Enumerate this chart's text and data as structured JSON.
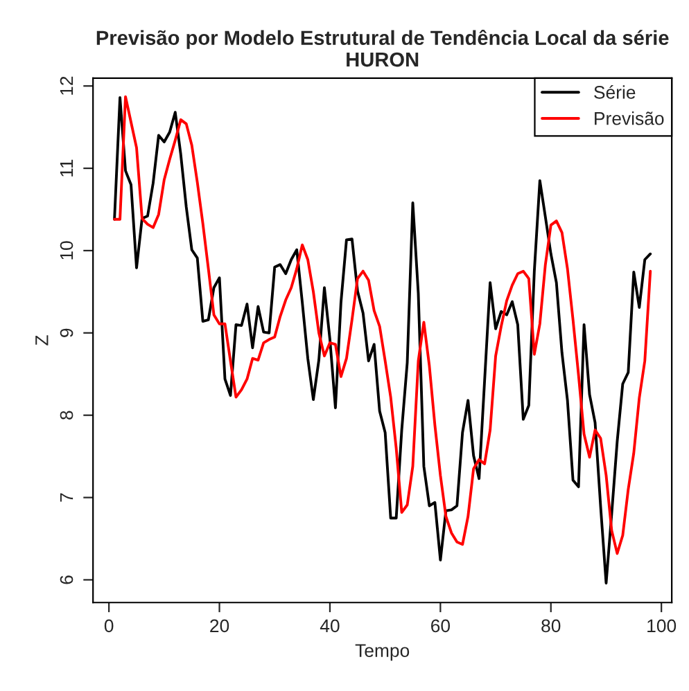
{
  "chart_data": {
    "type": "line",
    "title": "Previsão por Modelo Estrutural de Tendência Local da série\nHURON",
    "xlabel": "Tempo",
    "ylabel": "Z",
    "x": [
      1,
      2,
      3,
      4,
      5,
      6,
      7,
      8,
      9,
      10,
      11,
      12,
      13,
      14,
      15,
      16,
      17,
      18,
      19,
      20,
      21,
      22,
      23,
      24,
      25,
      26,
      27,
      28,
      29,
      30,
      31,
      32,
      33,
      34,
      35,
      36,
      37,
      38,
      39,
      40,
      41,
      42,
      43,
      44,
      45,
      46,
      47,
      48,
      49,
      50,
      51,
      52,
      53,
      54,
      55,
      56,
      57,
      58,
      59,
      60,
      61,
      62,
      63,
      64,
      65,
      66,
      67,
      68,
      69,
      70,
      71,
      72,
      73,
      74,
      75,
      76,
      77,
      78,
      79,
      80,
      81,
      82,
      83,
      84,
      85,
      86,
      87,
      88,
      89,
      90,
      91,
      92,
      93,
      94,
      95,
      96,
      97,
      98
    ],
    "series": [
      {
        "name": "Série",
        "color": "#000000",
        "values": [
          10.38,
          11.86,
          10.97,
          10.8,
          9.79,
          10.39,
          10.42,
          10.82,
          11.4,
          11.32,
          11.44,
          11.68,
          11.17,
          10.53,
          10.01,
          9.91,
          9.14,
          9.16,
          9.55,
          9.67,
          8.44,
          8.24,
          9.1,
          9.09,
          9.35,
          8.82,
          9.32,
          9.01,
          9.0,
          9.8,
          9.83,
          9.72,
          9.89,
          10.01,
          9.37,
          8.69,
          8.19,
          8.67,
          9.55,
          8.92,
          8.09,
          9.37,
          10.13,
          10.14,
          9.51,
          9.24,
          8.66,
          8.86,
          8.05,
          7.79,
          6.75,
          6.75,
          7.82,
          8.64,
          10.58,
          9.48,
          7.38,
          6.9,
          6.94,
          6.24,
          6.84,
          6.85,
          6.9,
          7.79,
          8.18,
          7.51,
          7.23,
          8.42,
          9.61,
          9.05,
          9.26,
          9.22,
          9.38,
          9.1,
          7.95,
          8.12,
          9.75,
          10.85,
          10.41,
          9.96,
          9.61,
          8.76,
          8.18,
          7.21,
          7.13,
          9.1,
          8.25,
          7.91,
          6.89,
          5.96,
          6.8,
          7.68,
          8.38,
          8.52,
          9.74,
          9.31,
          9.89,
          9.96
        ]
      },
      {
        "name": "Previsão",
        "color": "#ff0000",
        "values": [
          10.38,
          10.38,
          11.87,
          11.56,
          11.25,
          10.39,
          10.32,
          10.28,
          10.44,
          10.86,
          11.11,
          11.34,
          11.59,
          11.54,
          11.28,
          10.83,
          10.33,
          9.78,
          9.22,
          9.11,
          9.11,
          8.66,
          8.22,
          8.31,
          8.44,
          8.69,
          8.67,
          8.88,
          8.92,
          8.95,
          9.2,
          9.4,
          9.55,
          9.78,
          10.07,
          9.89,
          9.5,
          9.0,
          8.72,
          8.88,
          8.86,
          8.47,
          8.69,
          9.16,
          9.66,
          9.75,
          9.64,
          9.27,
          9.08,
          8.66,
          8.22,
          7.6,
          6.82,
          6.91,
          7.38,
          8.66,
          9.13,
          8.6,
          7.88,
          7.27,
          6.77,
          6.57,
          6.46,
          6.43,
          6.77,
          7.35,
          7.46,
          7.41,
          7.82,
          8.72,
          9.08,
          9.39,
          9.58,
          9.72,
          9.75,
          9.66,
          8.74,
          9.11,
          9.83,
          10.31,
          10.36,
          10.22,
          9.78,
          9.16,
          8.49,
          7.77,
          7.49,
          7.82,
          7.72,
          7.27,
          6.6,
          6.32,
          6.54,
          7.1,
          7.54,
          8.21,
          8.66,
          9.75
        ]
      }
    ],
    "xlim": [
      -2.88,
      101.88
    ],
    "ylim": [
      5.724,
      12.096
    ],
    "xticks": [
      0,
      20,
      40,
      60,
      80,
      100
    ],
    "yticks": [
      6,
      7,
      8,
      9,
      10,
      11,
      12
    ],
    "legend": "top right",
    "grid": false,
    "line_style": "solid"
  }
}
